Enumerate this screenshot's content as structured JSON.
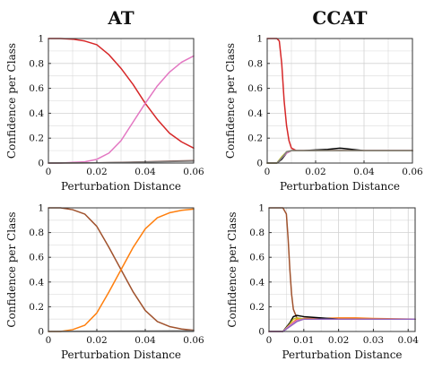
{
  "chart_data": [
    {
      "type": "line",
      "title": "AT",
      "xlabel": "Perturbation Distance",
      "ylabel": "Confidence per Class",
      "xlim": [
        0,
        0.06
      ],
      "ylim": [
        0,
        1
      ],
      "xticks": [
        "0",
        "0.02",
        "0.04",
        "0.06"
      ],
      "yticks": [
        "0",
        "0.2",
        "0.4",
        "0.6",
        "0.8",
        "1"
      ],
      "grid": true,
      "series": [
        {
          "color": "#d62728",
          "x": [
            0,
            0.005,
            0.01,
            0.015,
            0.02,
            0.025,
            0.03,
            0.035,
            0.04,
            0.045,
            0.05,
            0.055,
            0.06
          ],
          "values": [
            1,
            1,
            0.995,
            0.98,
            0.95,
            0.87,
            0.76,
            0.63,
            0.48,
            0.35,
            0.24,
            0.17,
            0.12
          ]
        },
        {
          "color": "#e377c2",
          "x": [
            0,
            0.005,
            0.01,
            0.015,
            0.02,
            0.025,
            0.03,
            0.035,
            0.04,
            0.045,
            0.05,
            0.055,
            0.06
          ],
          "values": [
            0,
            0,
            0.005,
            0.01,
            0.03,
            0.08,
            0.18,
            0.33,
            0.48,
            0.62,
            0.73,
            0.81,
            0.86
          ]
        },
        {
          "color": "#8c564b",
          "x": [
            0,
            0.02,
            0.03,
            0.04,
            0.05,
            0.06
          ],
          "values": [
            0,
            0.002,
            0.005,
            0.01,
            0.015,
            0.02
          ]
        },
        {
          "color": "#7f7f7f",
          "x": [
            0,
            0.02,
            0.03,
            0.04,
            0.05,
            0.06
          ],
          "values": [
            0,
            0.002,
            0.004,
            0.008,
            0.012,
            0.015
          ]
        }
      ]
    },
    {
      "type": "line",
      "title": "CCAT",
      "xlabel": "Perturbation Distance",
      "ylabel": "Confidence per Class",
      "xlim": [
        0,
        0.06
      ],
      "ylim": [
        0,
        1
      ],
      "xticks": [
        "0",
        "0.02",
        "0.04",
        "0.06"
      ],
      "yticks": [
        "0",
        "0.2",
        "0.4",
        "0.6",
        "0.8",
        "1"
      ],
      "grid": true,
      "series": [
        {
          "color": "#d62728",
          "x": [
            0,
            0.004,
            0.005,
            0.006,
            0.007,
            0.008,
            0.009,
            0.01,
            0.012,
            0.02,
            0.03,
            0.04,
            0.05,
            0.06
          ],
          "values": [
            1,
            1,
            0.98,
            0.8,
            0.5,
            0.3,
            0.18,
            0.12,
            0.1,
            0.1,
            0.1,
            0.1,
            0.1,
            0.1
          ]
        },
        {
          "color": "#000000",
          "x": [
            0,
            0.004,
            0.006,
            0.008,
            0.01,
            0.015,
            0.02,
            0.025,
            0.03,
            0.035,
            0.04,
            0.05,
            0.06
          ],
          "values": [
            0,
            0,
            0.03,
            0.08,
            0.1,
            0.1,
            0.105,
            0.11,
            0.12,
            0.11,
            0.1,
            0.1,
            0.1
          ]
        },
        {
          "color": "#e377c2",
          "x": [
            0,
            0.004,
            0.006,
            0.008,
            0.01,
            0.02,
            0.03,
            0.04,
            0.05,
            0.06
          ],
          "values": [
            0,
            0,
            0.04,
            0.08,
            0.1,
            0.1,
            0.1,
            0.1,
            0.1,
            0.1
          ]
        },
        {
          "color": "#bcbd22",
          "x": [
            0,
            0.004,
            0.006,
            0.008,
            0.01,
            0.02,
            0.03,
            0.04,
            0.05,
            0.06
          ],
          "values": [
            0,
            0,
            0.05,
            0.09,
            0.1,
            0.1,
            0.1,
            0.1,
            0.1,
            0.1
          ]
        },
        {
          "color": "#7f7f7f",
          "x": [
            0,
            0.004,
            0.006,
            0.008,
            0.01,
            0.02,
            0.03,
            0.04,
            0.05,
            0.06
          ],
          "values": [
            0,
            0,
            0.04,
            0.09,
            0.1,
            0.1,
            0.1,
            0.1,
            0.1,
            0.1
          ]
        }
      ]
    },
    {
      "type": "line",
      "title": "",
      "xlabel": "Perturbation Distance",
      "ylabel": "Confidence per Class",
      "xlim": [
        0,
        0.06
      ],
      "ylim": [
        0,
        1
      ],
      "xticks": [
        "0",
        "0.02",
        "0.04",
        "0.06"
      ],
      "yticks": [
        "0",
        "0.2",
        "0.4",
        "0.6",
        "0.8",
        "1"
      ],
      "grid": true,
      "series": [
        {
          "color": "#a0522d",
          "x": [
            0,
            0.005,
            0.01,
            0.015,
            0.02,
            0.025,
            0.03,
            0.035,
            0.04,
            0.045,
            0.05,
            0.055,
            0.06
          ],
          "values": [
            1,
            1,
            0.985,
            0.95,
            0.85,
            0.68,
            0.5,
            0.32,
            0.17,
            0.08,
            0.04,
            0.02,
            0.01
          ]
        },
        {
          "color": "#ff7f0e",
          "x": [
            0,
            0.005,
            0.01,
            0.015,
            0.02,
            0.025,
            0.03,
            0.035,
            0.04,
            0.045,
            0.05,
            0.055,
            0.06
          ],
          "values": [
            0,
            0,
            0.015,
            0.05,
            0.15,
            0.32,
            0.5,
            0.68,
            0.83,
            0.92,
            0.96,
            0.98,
            0.99
          ]
        },
        {
          "color": "#7f7f7f",
          "x": [
            0,
            0.02,
            0.04,
            0.06
          ],
          "values": [
            0,
            0.002,
            0.004,
            0.005
          ]
        }
      ]
    },
    {
      "type": "line",
      "title": "",
      "xlabel": "Perturbation Distance",
      "ylabel": "Confidence per Class",
      "xlim": [
        0,
        0.042
      ],
      "ylim": [
        0,
        1
      ],
      "xticks": [
        "0",
        "0.01",
        "0.02",
        "0.03",
        "0.04"
      ],
      "yticks": [
        "0",
        "0.2",
        "0.4",
        "0.6",
        "0.8",
        "1"
      ],
      "grid": true,
      "series": [
        {
          "color": "#a0522d",
          "x": [
            0,
            0.004,
            0.005,
            0.0055,
            0.006,
            0.0065,
            0.007,
            0.008,
            0.01,
            0.02,
            0.03,
            0.042
          ],
          "values": [
            1,
            1,
            0.95,
            0.75,
            0.5,
            0.3,
            0.18,
            0.11,
            0.1,
            0.1,
            0.1,
            0.1
          ]
        },
        {
          "color": "#ff7f0e",
          "x": [
            0,
            0.004,
            0.006,
            0.008,
            0.01,
            0.015,
            0.02,
            0.025,
            0.03,
            0.042
          ],
          "values": [
            0,
            0,
            0.05,
            0.1,
            0.105,
            0.105,
            0.11,
            0.11,
            0.105,
            0.1
          ]
        },
        {
          "color": "#000000",
          "x": [
            0,
            0.004,
            0.006,
            0.007,
            0.008,
            0.01,
            0.02,
            0.03,
            0.042
          ],
          "values": [
            0,
            0,
            0.07,
            0.12,
            0.13,
            0.12,
            0.1,
            0.1,
            0.1
          ]
        },
        {
          "color": "#bcbd22",
          "x": [
            0,
            0.004,
            0.006,
            0.007,
            0.008,
            0.01,
            0.02,
            0.03,
            0.042
          ],
          "values": [
            0,
            0,
            0.06,
            0.1,
            0.11,
            0.1,
            0.1,
            0.1,
            0.1
          ]
        },
        {
          "color": "#e377c2",
          "x": [
            0,
            0.004,
            0.006,
            0.008,
            0.01,
            0.02,
            0.03,
            0.042
          ],
          "values": [
            0,
            0,
            0.05,
            0.09,
            0.1,
            0.1,
            0.1,
            0.1
          ]
        },
        {
          "color": "#9467bd",
          "x": [
            0,
            0.004,
            0.006,
            0.008,
            0.01,
            0.02,
            0.03,
            0.042
          ],
          "values": [
            0,
            0,
            0.04,
            0.08,
            0.1,
            0.1,
            0.1,
            0.1
          ]
        }
      ]
    }
  ]
}
